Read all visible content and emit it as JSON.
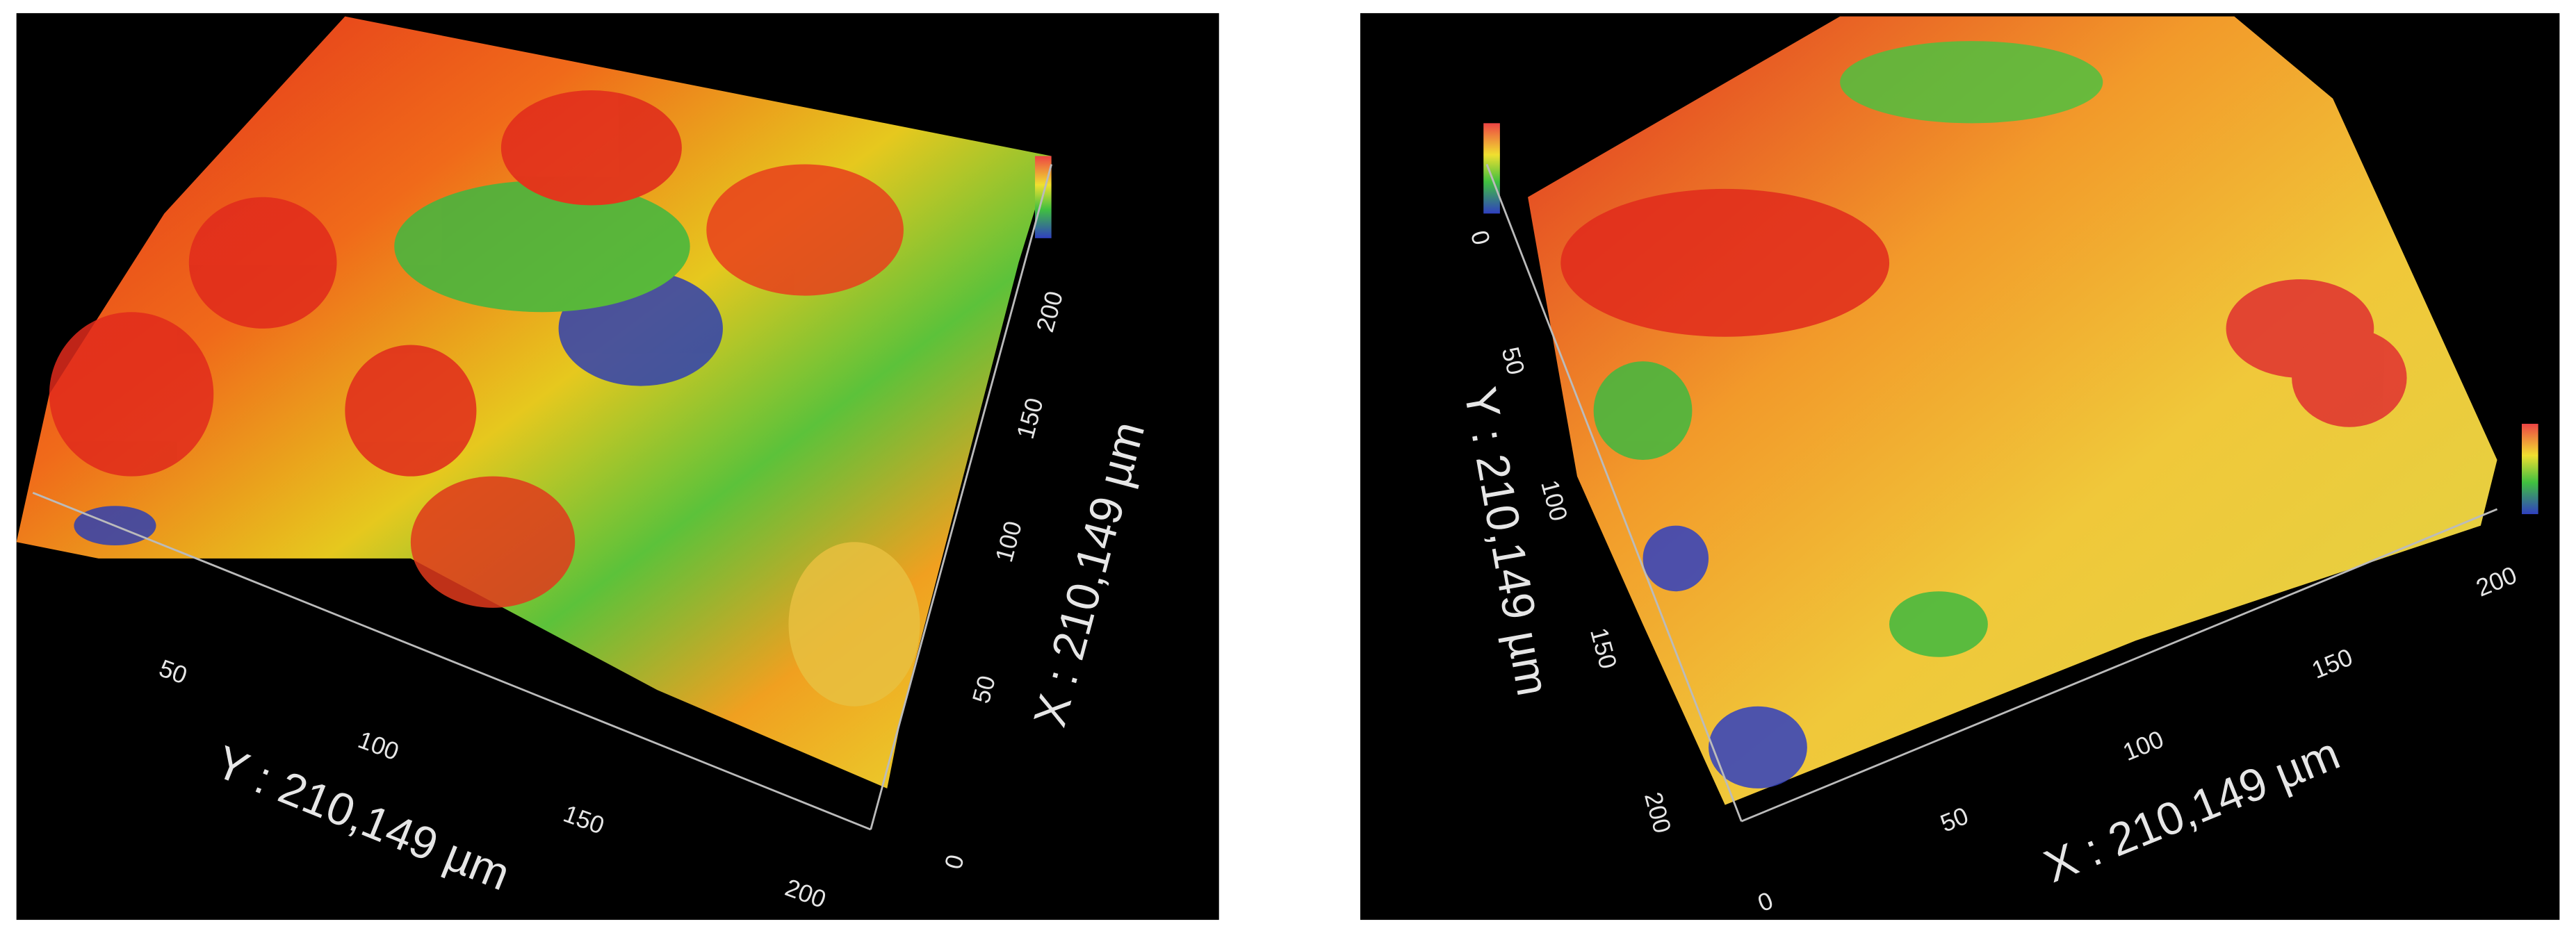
{
  "panels": [
    {
      "y_axis_label": "Y : 210,149 µm",
      "y_ticks": [
        50,
        100,
        150,
        200
      ],
      "x_axis_label": "X : 210,149 µm",
      "x_ticks": [
        0,
        50,
        100,
        150,
        200
      ]
    },
    {
      "y_axis_label": "Y : 210,149 µm",
      "y_ticks": [
        0,
        50,
        100,
        150,
        200
      ],
      "x_axis_label": "X : 210,149 µm",
      "x_ticks": [
        0,
        50,
        100,
        150,
        200
      ]
    }
  ]
}
